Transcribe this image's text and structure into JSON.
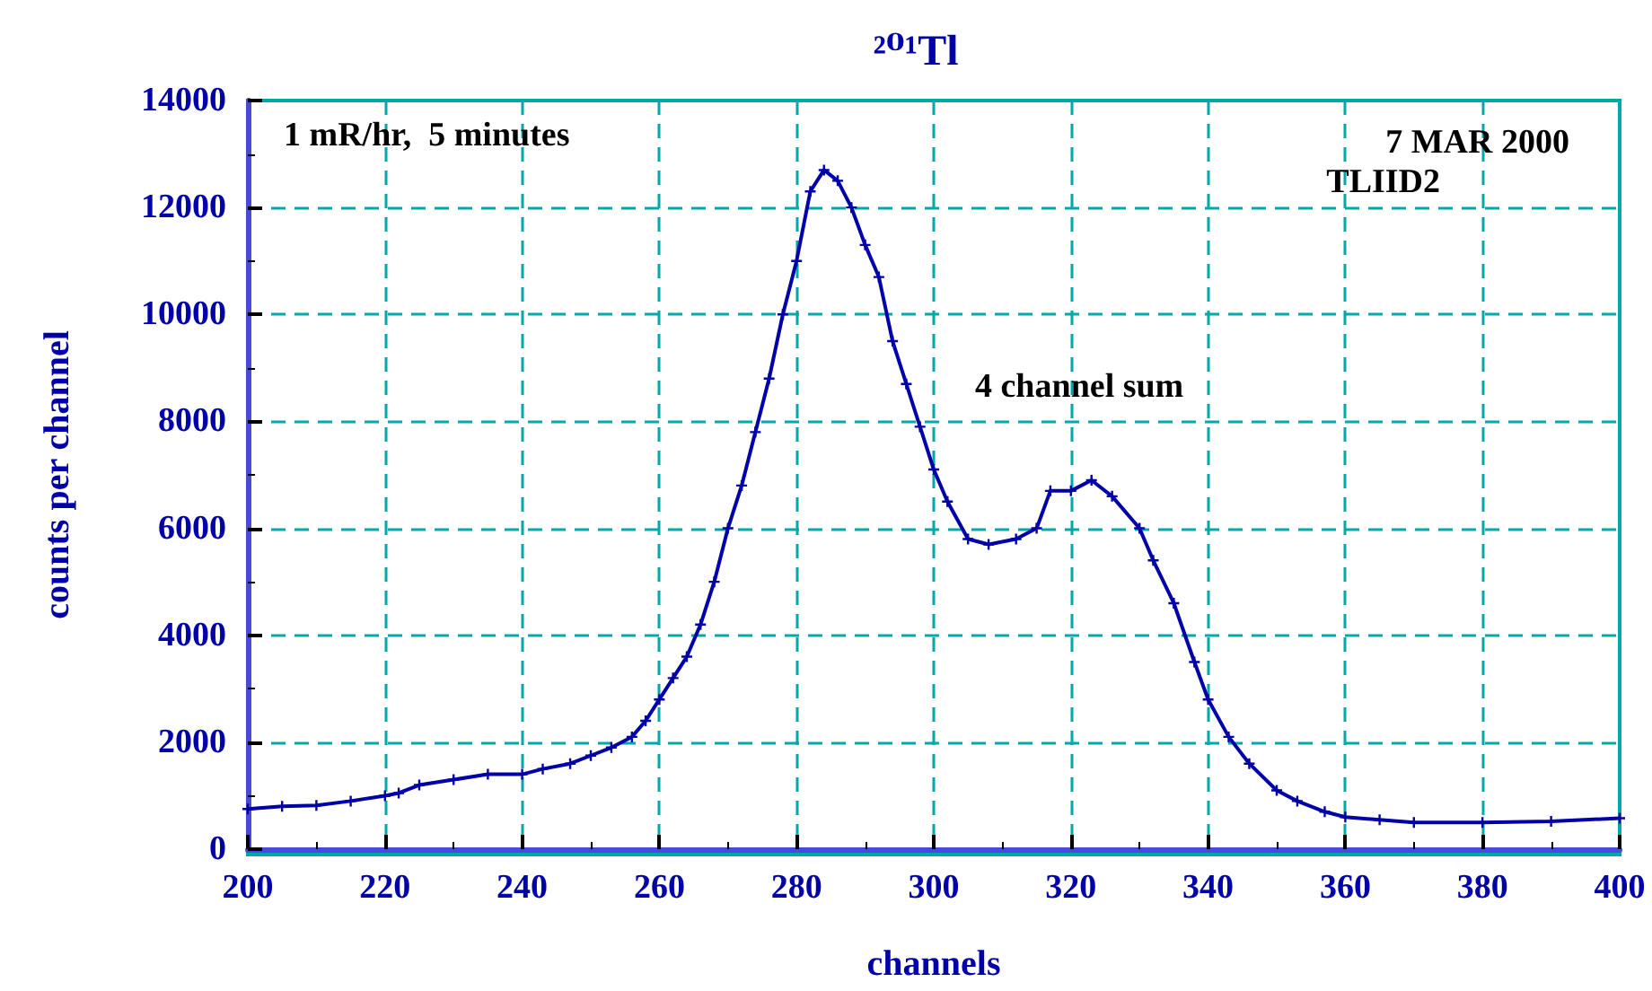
{
  "chart_data": {
    "type": "line",
    "title": "²⁰¹Tl",
    "xlabel": "channels",
    "ylabel": "counts per channel",
    "annotations": [
      "1 mR/hr,  5 minutes",
      "7 MAR 2000",
      "TLIID2",
      "4 channel sum"
    ],
    "xlim": [
      200,
      400
    ],
    "xticks": [
      200,
      220,
      240,
      260,
      280,
      300,
      320,
      340,
      360,
      380,
      400
    ],
    "ylim": [
      0,
      14000
    ],
    "yticks": [
      0,
      2000,
      4000,
      6000,
      8000,
      10000,
      12000,
      14000
    ],
    "grid": true,
    "marker": "cross",
    "line_style": "solid",
    "series": [
      {
        "color": "#0000a8",
        "x": [
          200,
          205,
          210,
          215,
          220,
          222,
          225,
          230,
          235,
          240,
          243,
          247,
          250,
          253,
          256,
          258,
          260,
          262,
          264,
          266,
          268,
          270,
          272,
          274,
          276,
          278,
          280,
          282,
          284,
          286,
          288,
          290,
          292,
          294,
          296,
          298,
          300,
          302,
          305,
          308,
          312,
          315,
          317,
          320,
          323,
          326,
          330,
          332,
          335,
          338,
          340,
          343,
          346,
          350,
          353,
          357,
          360,
          365,
          370,
          380,
          390,
          400
        ],
        "values": [
          750,
          800,
          820,
          900,
          1000,
          1050,
          1200,
          1300,
          1400,
          1400,
          1500,
          1600,
          1750,
          1900,
          2100,
          2400,
          2800,
          3200,
          3600,
          4200,
          5000,
          6000,
          6800,
          7800,
          8800,
          10000,
          11000,
          12300,
          12700,
          12500,
          12000,
          11300,
          10700,
          9500,
          8700,
          7900,
          7100,
          6500,
          5800,
          5700,
          5800,
          6000,
          6700,
          6700,
          6900,
          6600,
          6000,
          5400,
          4600,
          3500,
          2800,
          2100,
          1600,
          1100,
          900,
          700,
          600,
          550,
          500,
          500,
          520,
          580
        ]
      }
    ]
  }
}
